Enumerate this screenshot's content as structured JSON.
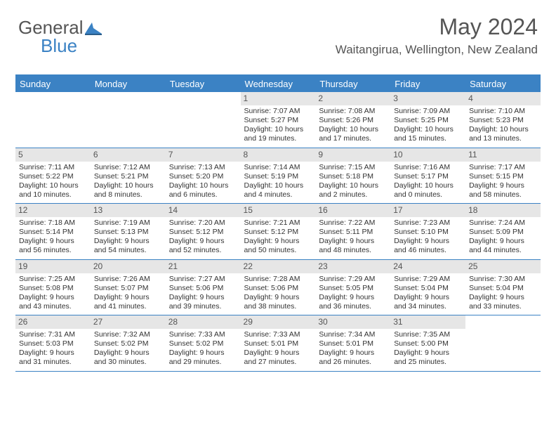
{
  "logo": {
    "text1": "General",
    "text2": "Blue"
  },
  "header": {
    "month": "May 2024",
    "location": "Waitangirua, Wellington, New Zealand"
  },
  "colors": {
    "accent": "#3b82c4",
    "dayHeaderBg": "#e6e6e6",
    "text": "#333333",
    "headerText": "#555555",
    "background": "#ffffff"
  },
  "dayNames": [
    "Sunday",
    "Monday",
    "Tuesday",
    "Wednesday",
    "Thursday",
    "Friday",
    "Saturday"
  ],
  "weeks": [
    [
      {
        "blank": true
      },
      {
        "blank": true
      },
      {
        "blank": true
      },
      {
        "n": "1",
        "sr": "7:07 AM",
        "ss": "5:27 PM",
        "dl": "10 hours and 19 minutes."
      },
      {
        "n": "2",
        "sr": "7:08 AM",
        "ss": "5:26 PM",
        "dl": "10 hours and 17 minutes."
      },
      {
        "n": "3",
        "sr": "7:09 AM",
        "ss": "5:25 PM",
        "dl": "10 hours and 15 minutes."
      },
      {
        "n": "4",
        "sr": "7:10 AM",
        "ss": "5:23 PM",
        "dl": "10 hours and 13 minutes."
      }
    ],
    [
      {
        "n": "5",
        "sr": "7:11 AM",
        "ss": "5:22 PM",
        "dl": "10 hours and 10 minutes."
      },
      {
        "n": "6",
        "sr": "7:12 AM",
        "ss": "5:21 PM",
        "dl": "10 hours and 8 minutes."
      },
      {
        "n": "7",
        "sr": "7:13 AM",
        "ss": "5:20 PM",
        "dl": "10 hours and 6 minutes."
      },
      {
        "n": "8",
        "sr": "7:14 AM",
        "ss": "5:19 PM",
        "dl": "10 hours and 4 minutes."
      },
      {
        "n": "9",
        "sr": "7:15 AM",
        "ss": "5:18 PM",
        "dl": "10 hours and 2 minutes."
      },
      {
        "n": "10",
        "sr": "7:16 AM",
        "ss": "5:17 PM",
        "dl": "10 hours and 0 minutes."
      },
      {
        "n": "11",
        "sr": "7:17 AM",
        "ss": "5:15 PM",
        "dl": "9 hours and 58 minutes."
      }
    ],
    [
      {
        "n": "12",
        "sr": "7:18 AM",
        "ss": "5:14 PM",
        "dl": "9 hours and 56 minutes."
      },
      {
        "n": "13",
        "sr": "7:19 AM",
        "ss": "5:13 PM",
        "dl": "9 hours and 54 minutes."
      },
      {
        "n": "14",
        "sr": "7:20 AM",
        "ss": "5:12 PM",
        "dl": "9 hours and 52 minutes."
      },
      {
        "n": "15",
        "sr": "7:21 AM",
        "ss": "5:12 PM",
        "dl": "9 hours and 50 minutes."
      },
      {
        "n": "16",
        "sr": "7:22 AM",
        "ss": "5:11 PM",
        "dl": "9 hours and 48 minutes."
      },
      {
        "n": "17",
        "sr": "7:23 AM",
        "ss": "5:10 PM",
        "dl": "9 hours and 46 minutes."
      },
      {
        "n": "18",
        "sr": "7:24 AM",
        "ss": "5:09 PM",
        "dl": "9 hours and 44 minutes."
      }
    ],
    [
      {
        "n": "19",
        "sr": "7:25 AM",
        "ss": "5:08 PM",
        "dl": "9 hours and 43 minutes."
      },
      {
        "n": "20",
        "sr": "7:26 AM",
        "ss": "5:07 PM",
        "dl": "9 hours and 41 minutes."
      },
      {
        "n": "21",
        "sr": "7:27 AM",
        "ss": "5:06 PM",
        "dl": "9 hours and 39 minutes."
      },
      {
        "n": "22",
        "sr": "7:28 AM",
        "ss": "5:06 PM",
        "dl": "9 hours and 38 minutes."
      },
      {
        "n": "23",
        "sr": "7:29 AM",
        "ss": "5:05 PM",
        "dl": "9 hours and 36 minutes."
      },
      {
        "n": "24",
        "sr": "7:29 AM",
        "ss": "5:04 PM",
        "dl": "9 hours and 34 minutes."
      },
      {
        "n": "25",
        "sr": "7:30 AM",
        "ss": "5:04 PM",
        "dl": "9 hours and 33 minutes."
      }
    ],
    [
      {
        "n": "26",
        "sr": "7:31 AM",
        "ss": "5:03 PM",
        "dl": "9 hours and 31 minutes."
      },
      {
        "n": "27",
        "sr": "7:32 AM",
        "ss": "5:02 PM",
        "dl": "9 hours and 30 minutes."
      },
      {
        "n": "28",
        "sr": "7:33 AM",
        "ss": "5:02 PM",
        "dl": "9 hours and 29 minutes."
      },
      {
        "n": "29",
        "sr": "7:33 AM",
        "ss": "5:01 PM",
        "dl": "9 hours and 27 minutes."
      },
      {
        "n": "30",
        "sr": "7:34 AM",
        "ss": "5:01 PM",
        "dl": "9 hours and 26 minutes."
      },
      {
        "n": "31",
        "sr": "7:35 AM",
        "ss": "5:00 PM",
        "dl": "9 hours and 25 minutes."
      },
      {
        "blank": true
      }
    ]
  ],
  "labels": {
    "sunrise": "Sunrise: ",
    "sunset": "Sunset: ",
    "daylight": "Daylight: "
  }
}
